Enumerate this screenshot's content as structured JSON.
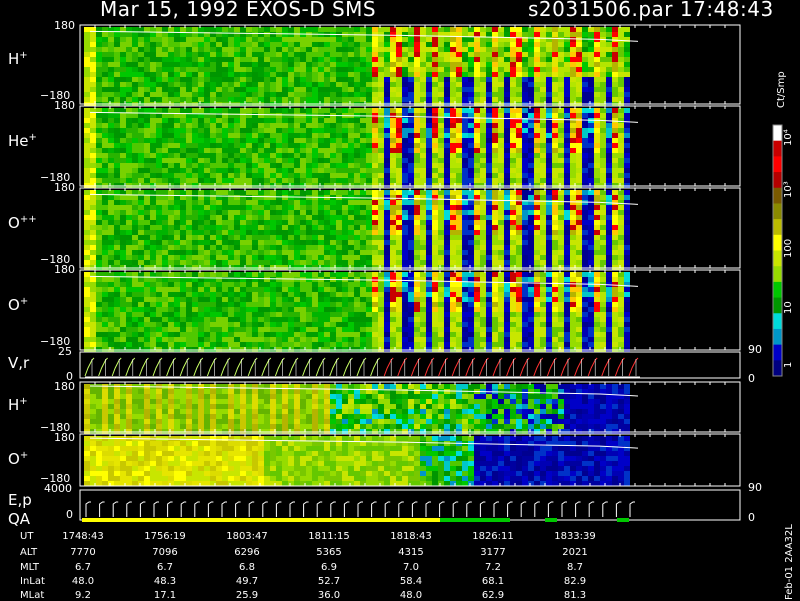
{
  "header": {
    "date_instrument": "Mar 15, 1992    EXOS-D SMS",
    "file_time": "s2031506.par  17:48:43"
  },
  "panels": {
    "h_plus": {
      "species": "H",
      "charge": "+"
    },
    "he_plus": {
      "species": "He",
      "charge": "+"
    },
    "o_pp": {
      "species": "O",
      "charge": "++"
    },
    "o_plus": {
      "species": "O",
      "charge": "+"
    },
    "vr": {
      "label": "V,r"
    },
    "h_plus_2": {
      "species": "H",
      "charge": "+"
    },
    "o_plus_2": {
      "species": "O",
      "charge": "+"
    },
    "ep": {
      "label1": "E,p",
      "label2": "QA"
    }
  },
  "ticks": {
    "t180": "180",
    "tm180": "−180",
    "t25": "25",
    "t0": "0",
    "t4000": "4000",
    "r90": "90",
    "r0": "0"
  },
  "colorbar": {
    "unit": "Ct/Smp",
    "labels": [
      "10⁴",
      "10³",
      "100",
      "10",
      "1"
    ],
    "colors": [
      "#ffffff",
      "#c80000",
      "#ff0000",
      "#b40000",
      "#7a5a00",
      "#8a8a00",
      "#bcbc00",
      "#ffff00",
      "#c8e600",
      "#96dc00",
      "#00c800",
      "#009600",
      "#00dcdc",
      "#0096c8",
      "#0000c8",
      "#000080"
    ]
  },
  "side_label": "Feb-01  2AA32L",
  "footer": {
    "row_labels": [
      "UT",
      "ALT",
      "MLT",
      "InLat",
      "MLat"
    ],
    "columns": [
      {
        "UT": "1748:43",
        "ALT": "7770",
        "MLT": "6.7",
        "InLat": "48.0",
        "MLat": "9.2"
      },
      {
        "UT": "1756:19",
        "ALT": "7096",
        "MLT": "6.7",
        "InLat": "48.3",
        "MLat": "17.1"
      },
      {
        "UT": "1803:47",
        "ALT": "6296",
        "MLT": "6.8",
        "InLat": "49.7",
        "MLat": "25.9"
      },
      {
        "UT": "1811:15",
        "ALT": "5365",
        "MLT": "6.9",
        "InLat": "52.7",
        "MLat": "36.0"
      },
      {
        "UT": "1818:43",
        "ALT": "4315",
        "MLT": "7.0",
        "InLat": "58.4",
        "MLat": "48.0"
      },
      {
        "UT": "1826:11",
        "ALT": "3177",
        "MLT": "7.2",
        "InLat": "68.1",
        "MLat": "62.9"
      },
      {
        "UT": "1833:39",
        "ALT": "2021",
        "MLT": "8.7",
        "InLat": "82.9",
        "MLat": "81.3"
      }
    ]
  },
  "chart_data": {
    "type": "heatmap",
    "x_ticks": [
      "1748:43",
      "1756:19",
      "1803:47",
      "1811:15",
      "1818:43",
      "1826:11",
      "1833:39"
    ],
    "panels": [
      {
        "label": "H+",
        "ylim": [
          -180,
          180
        ]
      },
      {
        "label": "He+",
        "ylim": [
          -180,
          180
        ]
      },
      {
        "label": "O++",
        "ylim": [
          -180,
          180
        ]
      },
      {
        "label": "O+",
        "ylim": [
          -180,
          180
        ]
      },
      {
        "label": "V,r",
        "ylim": [
          0,
          25
        ],
        "right_ylim": [
          0,
          90
        ]
      },
      {
        "label": "H+",
        "ylim": [
          -180,
          180
        ]
      },
      {
        "label": "O+",
        "ylim": [
          -180,
          180
        ]
      },
      {
        "label": "E,p QA",
        "ylim": [
          0,
          4000
        ],
        "right_ylim": [
          0,
          90
        ]
      }
    ],
    "colorbar_ticks": [
      "1",
      "10",
      "100",
      "10³",
      "10⁴"
    ],
    "colorbar_unit": "Ct/Smp"
  }
}
